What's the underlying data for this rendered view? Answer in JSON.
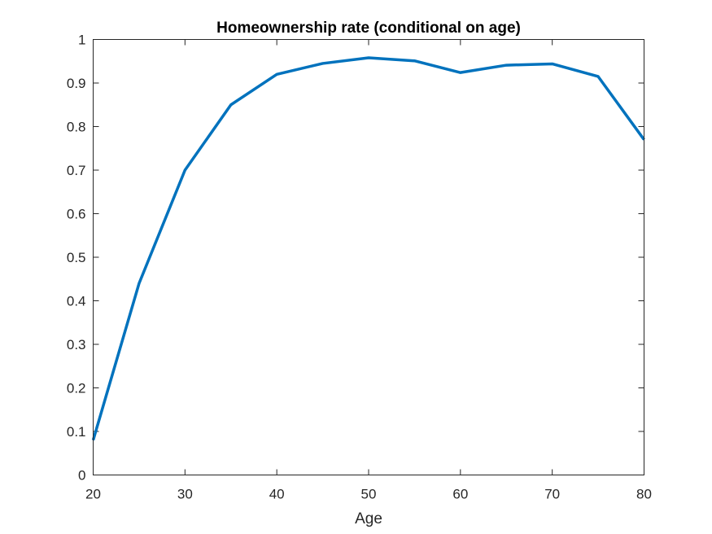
{
  "chart_data": {
    "type": "line",
    "title": "Homeownership rate (conditional on age)",
    "xlabel": "Age",
    "ylabel": "",
    "xlim": [
      20,
      80
    ],
    "ylim": [
      0,
      1
    ],
    "xticks": [
      "20",
      "30",
      "40",
      "50",
      "60",
      "70",
      "80"
    ],
    "yticks": [
      "0",
      "0.1",
      "0.2",
      "0.3",
      "0.4",
      "0.5",
      "0.6",
      "0.7",
      "0.8",
      "0.9",
      "1"
    ],
    "xtick_values": [
      20,
      30,
      40,
      50,
      60,
      70,
      80
    ],
    "ytick_values": [
      0,
      0.1,
      0.2,
      0.3,
      0.4,
      0.5,
      0.6,
      0.7,
      0.8,
      0.9,
      1
    ],
    "grid": false,
    "series": [
      {
        "color": "#0072BD",
        "x": [
          20,
          25,
          30,
          35,
          40,
          45,
          50,
          55,
          60,
          65,
          70,
          75,
          80
        ],
        "y": [
          0.08,
          0.44,
          0.7,
          0.85,
          0.92,
          0.945,
          0.958,
          0.951,
          0.924,
          0.941,
          0.944,
          0.915,
          0.77
        ]
      }
    ]
  }
}
